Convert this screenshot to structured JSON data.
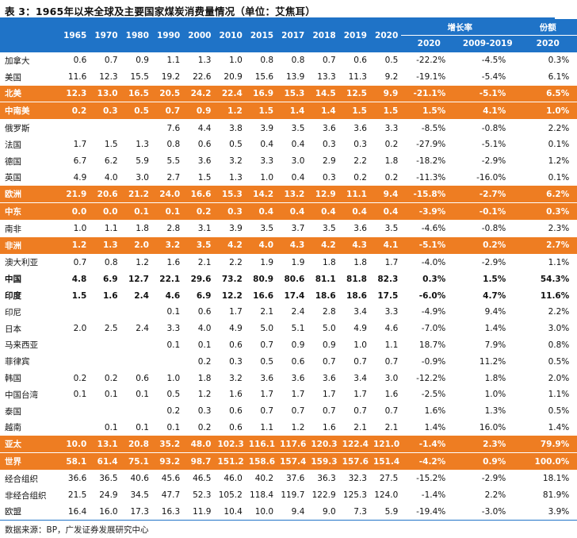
{
  "title": "表 3：1965年以来全球及主要国家煤炭消费量情况（单位：艾焦耳）",
  "header": {
    "years": [
      "1965",
      "1970",
      "1980",
      "1990",
      "2000",
      "2010",
      "2015",
      "2017",
      "2018",
      "2019",
      "2020"
    ],
    "growth_group": "增长率",
    "growth_cols": [
      "2020",
      "2009-2019"
    ],
    "share_group": "份额",
    "share_col": "2020"
  },
  "rows": [
    {
      "name": "加拿大",
      "style": "normal",
      "values": [
        "0.6",
        "0.7",
        "0.9",
        "1.1",
        "1.3",
        "1.0",
        "0.8",
        "0.8",
        "0.7",
        "0.6",
        "0.5"
      ],
      "growth2020": "-22.2%",
      "growth0919": "-4.5%",
      "share": "0.3%"
    },
    {
      "name": "美国",
      "style": "normal",
      "values": [
        "11.6",
        "12.3",
        "15.5",
        "19.2",
        "22.6",
        "20.9",
        "15.6",
        "13.9",
        "13.3",
        "11.3",
        "9.2"
      ],
      "growth2020": "-19.1%",
      "growth0919": "-5.4%",
      "share": "6.1%"
    },
    {
      "name": "北美",
      "style": "highlight",
      "values": [
        "12.3",
        "13.0",
        "16.5",
        "20.5",
        "24.2",
        "22.4",
        "16.9",
        "15.3",
        "14.5",
        "12.5",
        "9.9"
      ],
      "growth2020": "-21.1%",
      "growth0919": "-5.1%",
      "share": "6.5%"
    },
    {
      "name": "中南美",
      "style": "highlight",
      "values": [
        "0.2",
        "0.3",
        "0.5",
        "0.7",
        "0.9",
        "1.2",
        "1.5",
        "1.4",
        "1.4",
        "1.5",
        "1.5"
      ],
      "growth2020": "1.5%",
      "growth0919": "4.1%",
      "share": "1.0%"
    },
    {
      "name": "俄罗斯",
      "style": "normal",
      "values": [
        "",
        "",
        "",
        "7.6",
        "4.4",
        "3.8",
        "3.9",
        "3.5",
        "3.6",
        "3.6",
        "3.3"
      ],
      "growth2020": "-8.5%",
      "growth0919": "-0.8%",
      "share": "2.2%"
    },
    {
      "name": "法国",
      "style": "normal",
      "values": [
        "1.7",
        "1.5",
        "1.3",
        "0.8",
        "0.6",
        "0.5",
        "0.4",
        "0.4",
        "0.3",
        "0.3",
        "0.2"
      ],
      "growth2020": "-27.9%",
      "growth0919": "-5.1%",
      "share": "0.1%"
    },
    {
      "name": "德国",
      "style": "normal",
      "values": [
        "6.7",
        "6.2",
        "5.9",
        "5.5",
        "3.6",
        "3.2",
        "3.3",
        "3.0",
        "2.9",
        "2.2",
        "1.8"
      ],
      "growth2020": "-18.2%",
      "growth0919": "-2.9%",
      "share": "1.2%"
    },
    {
      "name": "英国",
      "style": "normal",
      "values": [
        "4.9",
        "4.0",
        "3.0",
        "2.7",
        "1.5",
        "1.3",
        "1.0",
        "0.4",
        "0.3",
        "0.2",
        "0.2"
      ],
      "growth2020": "-11.3%",
      "growth0919": "-16.0%",
      "share": "0.1%"
    },
    {
      "name": "欧洲",
      "style": "highlight",
      "values": [
        "21.9",
        "20.6",
        "21.2",
        "24.0",
        "16.6",
        "15.3",
        "14.2",
        "13.2",
        "12.9",
        "11.1",
        "9.4"
      ],
      "growth2020": "-15.8%",
      "growth0919": "-2.7%",
      "share": "6.2%"
    },
    {
      "name": "中东",
      "style": "highlight",
      "values": [
        "0.0",
        "0.0",
        "0.1",
        "0.1",
        "0.2",
        "0.3",
        "0.4",
        "0.4",
        "0.4",
        "0.4",
        "0.4"
      ],
      "growth2020": "-3.9%",
      "growth0919": "-0.1%",
      "share": "0.3%"
    },
    {
      "name": "南非",
      "style": "normal",
      "values": [
        "1.0",
        "1.1",
        "1.8",
        "2.8",
        "3.1",
        "3.9",
        "3.5",
        "3.7",
        "3.5",
        "3.6",
        "3.5"
      ],
      "growth2020": "-4.6%",
      "growth0919": "-0.8%",
      "share": "2.3%"
    },
    {
      "name": "非洲",
      "style": "highlight",
      "values": [
        "1.2",
        "1.3",
        "2.0",
        "3.2",
        "3.5",
        "4.2",
        "4.0",
        "4.3",
        "4.2",
        "4.3",
        "4.1"
      ],
      "growth2020": "-5.1%",
      "growth0919": "0.2%",
      "share": "2.7%"
    },
    {
      "name": "澳大利亚",
      "style": "normal",
      "values": [
        "0.7",
        "0.8",
        "1.2",
        "1.6",
        "2.1",
        "2.2",
        "1.9",
        "1.9",
        "1.8",
        "1.8",
        "1.7"
      ],
      "growth2020": "-4.0%",
      "growth0919": "-2.9%",
      "share": "1.1%"
    },
    {
      "name": "中国",
      "style": "bold",
      "values": [
        "4.8",
        "6.9",
        "12.7",
        "22.1",
        "29.6",
        "73.2",
        "80.9",
        "80.6",
        "81.1",
        "81.8",
        "82.3"
      ],
      "growth2020": "0.3%",
      "growth0919": "1.5%",
      "share": "54.3%"
    },
    {
      "name": "印度",
      "style": "bold",
      "values": [
        "1.5",
        "1.6",
        "2.4",
        "4.6",
        "6.9",
        "12.2",
        "16.6",
        "17.4",
        "18.6",
        "18.6",
        "17.5"
      ],
      "growth2020": "-6.0%",
      "growth0919": "4.7%",
      "share": "11.6%"
    },
    {
      "name": "印尼",
      "style": "normal",
      "values": [
        "",
        "",
        "",
        "0.1",
        "0.6",
        "1.7",
        "2.1",
        "2.4",
        "2.8",
        "3.4",
        "3.3"
      ],
      "growth2020": "-4.9%",
      "growth0919": "9.4%",
      "share": "2.2%"
    },
    {
      "name": "日本",
      "style": "normal",
      "values": [
        "2.0",
        "2.5",
        "2.4",
        "3.3",
        "4.0",
        "4.9",
        "5.0",
        "5.1",
        "5.0",
        "4.9",
        "4.6"
      ],
      "growth2020": "-7.0%",
      "growth0919": "1.4%",
      "share": "3.0%"
    },
    {
      "name": "马来西亚",
      "style": "normal",
      "values": [
        "",
        "",
        "",
        "0.1",
        "0.1",
        "0.6",
        "0.7",
        "0.9",
        "0.9",
        "1.0",
        "1.1"
      ],
      "growth2020": "18.7%",
      "growth0919": "7.9%",
      "share": "0.8%"
    },
    {
      "name": "菲律宾",
      "style": "normal",
      "values": [
        "",
        "",
        "",
        "",
        "0.2",
        "0.3",
        "0.5",
        "0.6",
        "0.7",
        "0.7",
        "0.7"
      ],
      "growth2020": "-0.9%",
      "growth0919": "11.2%",
      "share": "0.5%"
    },
    {
      "name": "韩国",
      "style": "normal",
      "values": [
        "0.2",
        "0.2",
        "0.6",
        "1.0",
        "1.8",
        "3.2",
        "3.6",
        "3.6",
        "3.6",
        "3.4",
        "3.0"
      ],
      "growth2020": "-12.2%",
      "growth0919": "1.8%",
      "share": "2.0%"
    },
    {
      "name": "中国台湾",
      "style": "normal",
      "values": [
        "0.1",
        "0.1",
        "0.1",
        "0.5",
        "1.2",
        "1.6",
        "1.7",
        "1.7",
        "1.7",
        "1.7",
        "1.6"
      ],
      "growth2020": "-2.5%",
      "growth0919": "1.0%",
      "share": "1.1%"
    },
    {
      "name": "泰国",
      "style": "normal",
      "values": [
        "",
        "",
        "",
        "0.2",
        "0.3",
        "0.6",
        "0.7",
        "0.7",
        "0.7",
        "0.7",
        "0.7"
      ],
      "growth2020": "1.6%",
      "growth0919": "1.3%",
      "share": "0.5%"
    },
    {
      "name": "越南",
      "style": "normal",
      "values": [
        "",
        "0.1",
        "0.1",
        "0.1",
        "0.2",
        "0.6",
        "1.1",
        "1.2",
        "1.6",
        "2.1",
        "2.1"
      ],
      "growth2020": "1.4%",
      "growth0919": "16.0%",
      "share": "1.4%"
    },
    {
      "name": "亚太",
      "style": "highlight",
      "values": [
        "10.0",
        "13.1",
        "20.8",
        "35.2",
        "48.0",
        "102.3",
        "116.1",
        "117.6",
        "120.3",
        "122.4",
        "121.0"
      ],
      "growth2020": "-1.4%",
      "growth0919": "2.3%",
      "share": "79.9%"
    },
    {
      "name": "世界",
      "style": "highlight",
      "values": [
        "58.1",
        "61.4",
        "75.1",
        "93.2",
        "98.7",
        "151.2",
        "158.6",
        "157.4",
        "159.3",
        "157.6",
        "151.4"
      ],
      "growth2020": "-4.2%",
      "growth0919": "0.9%",
      "share": "100.0%"
    },
    {
      "name": "经合组织",
      "style": "normal",
      "values": [
        "36.6",
        "36.5",
        "40.6",
        "45.6",
        "46.5",
        "46.0",
        "40.2",
        "37.6",
        "36.3",
        "32.3",
        "27.5"
      ],
      "growth2020": "-15.2%",
      "growth0919": "-2.9%",
      "share": "18.1%"
    },
    {
      "name": "非经合组织",
      "style": "normal",
      "values": [
        "21.5",
        "24.9",
        "34.5",
        "47.7",
        "52.3",
        "105.2",
        "118.4",
        "119.7",
        "122.9",
        "125.3",
        "124.0"
      ],
      "growth2020": "-1.4%",
      "growth0919": "2.2%",
      "share": "81.9%"
    },
    {
      "name": "欧盟",
      "style": "normal",
      "values": [
        "16.4",
        "16.0",
        "17.3",
        "16.3",
        "11.9",
        "10.4",
        "10.0",
        "9.4",
        "9.0",
        "7.3",
        "5.9"
      ],
      "growth2020": "-19.4%",
      "growth0919": "-3.0%",
      "share": "3.9%"
    }
  ],
  "source": "数据来源：BP，广发证券发展研究中心",
  "colors": {
    "header_bg": "#1f73c7",
    "highlight_bg": "#ee7d22",
    "text": "#111111"
  }
}
